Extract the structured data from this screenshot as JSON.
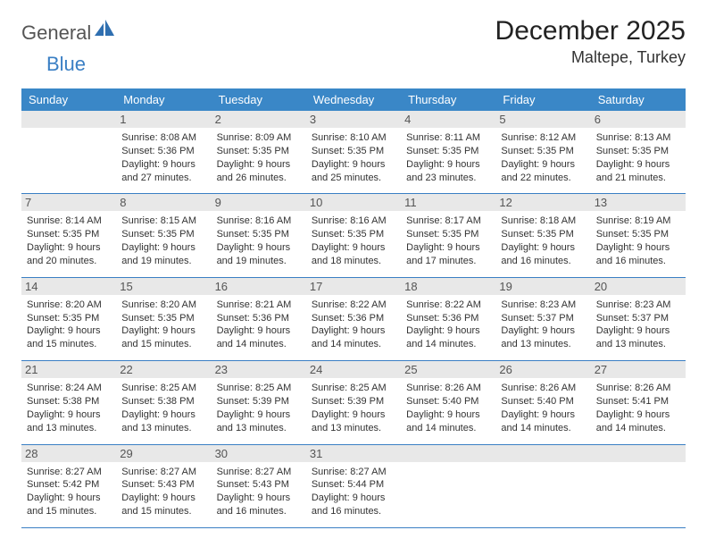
{
  "brand": {
    "name_a": "General",
    "name_b": "Blue"
  },
  "title": "December 2025",
  "location": "Maltepe, Turkey",
  "colors": {
    "header_bg": "#3a87c7",
    "rule": "#3a7fc4",
    "daynum_bg": "#e8e8e8",
    "text": "#333333"
  },
  "day_names": [
    "Sunday",
    "Monday",
    "Tuesday",
    "Wednesday",
    "Thursday",
    "Friday",
    "Saturday"
  ],
  "weeks": [
    [
      {
        "n": "",
        "sunrise": "",
        "sunset": "",
        "daylight": ""
      },
      {
        "n": "1",
        "sunrise": "Sunrise: 8:08 AM",
        "sunset": "Sunset: 5:36 PM",
        "daylight": "Daylight: 9 hours and 27 minutes."
      },
      {
        "n": "2",
        "sunrise": "Sunrise: 8:09 AM",
        "sunset": "Sunset: 5:35 PM",
        "daylight": "Daylight: 9 hours and 26 minutes."
      },
      {
        "n": "3",
        "sunrise": "Sunrise: 8:10 AM",
        "sunset": "Sunset: 5:35 PM",
        "daylight": "Daylight: 9 hours and 25 minutes."
      },
      {
        "n": "4",
        "sunrise": "Sunrise: 8:11 AM",
        "sunset": "Sunset: 5:35 PM",
        "daylight": "Daylight: 9 hours and 23 minutes."
      },
      {
        "n": "5",
        "sunrise": "Sunrise: 8:12 AM",
        "sunset": "Sunset: 5:35 PM",
        "daylight": "Daylight: 9 hours and 22 minutes."
      },
      {
        "n": "6",
        "sunrise": "Sunrise: 8:13 AM",
        "sunset": "Sunset: 5:35 PM",
        "daylight": "Daylight: 9 hours and 21 minutes."
      }
    ],
    [
      {
        "n": "7",
        "sunrise": "Sunrise: 8:14 AM",
        "sunset": "Sunset: 5:35 PM",
        "daylight": "Daylight: 9 hours and 20 minutes."
      },
      {
        "n": "8",
        "sunrise": "Sunrise: 8:15 AM",
        "sunset": "Sunset: 5:35 PM",
        "daylight": "Daylight: 9 hours and 19 minutes."
      },
      {
        "n": "9",
        "sunrise": "Sunrise: 8:16 AM",
        "sunset": "Sunset: 5:35 PM",
        "daylight": "Daylight: 9 hours and 19 minutes."
      },
      {
        "n": "10",
        "sunrise": "Sunrise: 8:16 AM",
        "sunset": "Sunset: 5:35 PM",
        "daylight": "Daylight: 9 hours and 18 minutes."
      },
      {
        "n": "11",
        "sunrise": "Sunrise: 8:17 AM",
        "sunset": "Sunset: 5:35 PM",
        "daylight": "Daylight: 9 hours and 17 minutes."
      },
      {
        "n": "12",
        "sunrise": "Sunrise: 8:18 AM",
        "sunset": "Sunset: 5:35 PM",
        "daylight": "Daylight: 9 hours and 16 minutes."
      },
      {
        "n": "13",
        "sunrise": "Sunrise: 8:19 AM",
        "sunset": "Sunset: 5:35 PM",
        "daylight": "Daylight: 9 hours and 16 minutes."
      }
    ],
    [
      {
        "n": "14",
        "sunrise": "Sunrise: 8:20 AM",
        "sunset": "Sunset: 5:35 PM",
        "daylight": "Daylight: 9 hours and 15 minutes."
      },
      {
        "n": "15",
        "sunrise": "Sunrise: 8:20 AM",
        "sunset": "Sunset: 5:35 PM",
        "daylight": "Daylight: 9 hours and 15 minutes."
      },
      {
        "n": "16",
        "sunrise": "Sunrise: 8:21 AM",
        "sunset": "Sunset: 5:36 PM",
        "daylight": "Daylight: 9 hours and 14 minutes."
      },
      {
        "n": "17",
        "sunrise": "Sunrise: 8:22 AM",
        "sunset": "Sunset: 5:36 PM",
        "daylight": "Daylight: 9 hours and 14 minutes."
      },
      {
        "n": "18",
        "sunrise": "Sunrise: 8:22 AM",
        "sunset": "Sunset: 5:36 PM",
        "daylight": "Daylight: 9 hours and 14 minutes."
      },
      {
        "n": "19",
        "sunrise": "Sunrise: 8:23 AM",
        "sunset": "Sunset: 5:37 PM",
        "daylight": "Daylight: 9 hours and 13 minutes."
      },
      {
        "n": "20",
        "sunrise": "Sunrise: 8:23 AM",
        "sunset": "Sunset: 5:37 PM",
        "daylight": "Daylight: 9 hours and 13 minutes."
      }
    ],
    [
      {
        "n": "21",
        "sunrise": "Sunrise: 8:24 AM",
        "sunset": "Sunset: 5:38 PM",
        "daylight": "Daylight: 9 hours and 13 minutes."
      },
      {
        "n": "22",
        "sunrise": "Sunrise: 8:25 AM",
        "sunset": "Sunset: 5:38 PM",
        "daylight": "Daylight: 9 hours and 13 minutes."
      },
      {
        "n": "23",
        "sunrise": "Sunrise: 8:25 AM",
        "sunset": "Sunset: 5:39 PM",
        "daylight": "Daylight: 9 hours and 13 minutes."
      },
      {
        "n": "24",
        "sunrise": "Sunrise: 8:25 AM",
        "sunset": "Sunset: 5:39 PM",
        "daylight": "Daylight: 9 hours and 13 minutes."
      },
      {
        "n": "25",
        "sunrise": "Sunrise: 8:26 AM",
        "sunset": "Sunset: 5:40 PM",
        "daylight": "Daylight: 9 hours and 14 minutes."
      },
      {
        "n": "26",
        "sunrise": "Sunrise: 8:26 AM",
        "sunset": "Sunset: 5:40 PM",
        "daylight": "Daylight: 9 hours and 14 minutes."
      },
      {
        "n": "27",
        "sunrise": "Sunrise: 8:26 AM",
        "sunset": "Sunset: 5:41 PM",
        "daylight": "Daylight: 9 hours and 14 minutes."
      }
    ],
    [
      {
        "n": "28",
        "sunrise": "Sunrise: 8:27 AM",
        "sunset": "Sunset: 5:42 PM",
        "daylight": "Daylight: 9 hours and 15 minutes."
      },
      {
        "n": "29",
        "sunrise": "Sunrise: 8:27 AM",
        "sunset": "Sunset: 5:43 PM",
        "daylight": "Daylight: 9 hours and 15 minutes."
      },
      {
        "n": "30",
        "sunrise": "Sunrise: 8:27 AM",
        "sunset": "Sunset: 5:43 PM",
        "daylight": "Daylight: 9 hours and 16 minutes."
      },
      {
        "n": "31",
        "sunrise": "Sunrise: 8:27 AM",
        "sunset": "Sunset: 5:44 PM",
        "daylight": "Daylight: 9 hours and 16 minutes."
      },
      {
        "n": "",
        "sunrise": "",
        "sunset": "",
        "daylight": ""
      },
      {
        "n": "",
        "sunrise": "",
        "sunset": "",
        "daylight": ""
      },
      {
        "n": "",
        "sunrise": "",
        "sunset": "",
        "daylight": ""
      }
    ]
  ]
}
